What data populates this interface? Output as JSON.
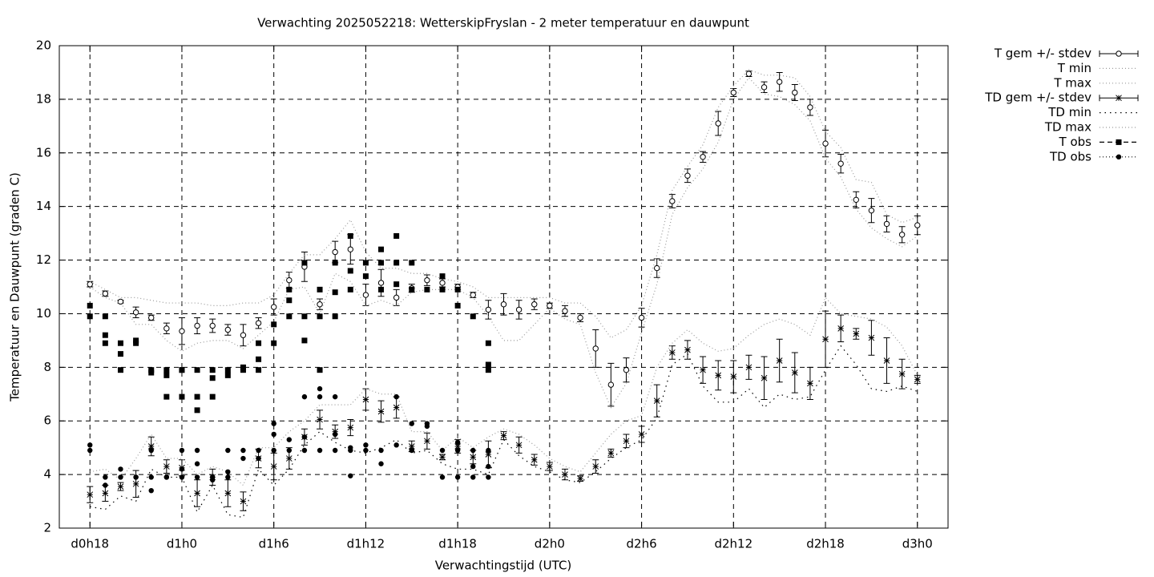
{
  "chart_data": {
    "type": "line",
    "title": "Verwachting 2025052218: WetterskipFryslan - 2 meter temperatuur en dauwpunt",
    "xlabel": "Verwachtingstijd (UTC)",
    "ylabel": "Temperatuur en Dauwpunt (graden C)",
    "xlim": [
      16,
      74
    ],
    "ylim": [
      2,
      20
    ],
    "xticks": [
      {
        "value": 18,
        "label": "d0h18"
      },
      {
        "value": 24,
        "label": "d1h0"
      },
      {
        "value": 30,
        "label": "d1h6"
      },
      {
        "value": 36,
        "label": "d1h12"
      },
      {
        "value": 42,
        "label": "d1h18"
      },
      {
        "value": 48,
        "label": "d2h0"
      },
      {
        "value": 54,
        "label": "d2h6"
      },
      {
        "value": 60,
        "label": "d2h12"
      },
      {
        "value": 66,
        "label": "d2h18"
      },
      {
        "value": 72,
        "label": "d3h0"
      }
    ],
    "yticks": [
      2,
      4,
      6,
      8,
      10,
      12,
      14,
      16,
      18,
      20
    ],
    "grid": true,
    "legend": "outside-top-right",
    "x": [
      18,
      19,
      20,
      21,
      22,
      23,
      24,
      25,
      26,
      27,
      28,
      29,
      30,
      31,
      32,
      33,
      34,
      35,
      36,
      37,
      38,
      39,
      40,
      41,
      42,
      43,
      44,
      45,
      46,
      47,
      48,
      49,
      50,
      51,
      52,
      53,
      54,
      55,
      56,
      57,
      58,
      59,
      60,
      61,
      62,
      63,
      64,
      65,
      66,
      67,
      68,
      69,
      70,
      71,
      72
    ],
    "series": [
      {
        "name": "T gem +/- stdev",
        "color": "#000000",
        "style": "errorbars",
        "marker": "circle-open",
        "values": [
          11.1,
          10.75,
          10.45,
          10.05,
          9.85,
          9.45,
          9.35,
          9.55,
          9.55,
          9.4,
          9.2,
          9.65,
          10.25,
          11.25,
          11.75,
          10.35,
          12.3,
          12.4,
          10.7,
          11.15,
          10.6,
          10.95,
          11.25,
          11.15,
          11.0,
          10.7,
          10.15,
          10.35,
          10.15,
          10.35,
          10.3,
          10.1,
          9.85,
          8.7,
          7.35,
          7.9,
          9.85,
          11.7,
          14.2,
          15.15,
          15.85,
          17.1,
          18.25,
          18.95,
          18.45,
          18.65,
          18.25,
          17.7,
          16.35,
          15.6,
          14.25,
          13.85,
          13.35,
          12.95,
          13.3
        ],
        "errors": [
          0.1,
          0.1,
          0.05,
          0.2,
          0.1,
          0.2,
          0.5,
          0.3,
          0.25,
          0.2,
          0.4,
          0.2,
          0.3,
          0.3,
          0.55,
          0.2,
          0.4,
          0.55,
          0.4,
          0.5,
          0.3,
          0.15,
          0.2,
          0.15,
          0.1,
          0.1,
          0.35,
          0.4,
          0.35,
          0.2,
          0.1,
          0.2,
          0.15,
          0.7,
          0.8,
          0.45,
          0.35,
          0.35,
          0.25,
          0.25,
          0.2,
          0.45,
          0.15,
          0.1,
          0.2,
          0.35,
          0.3,
          0.3,
          0.5,
          0.35,
          0.3,
          0.45,
          0.3,
          0.3,
          0.35
        ]
      },
      {
        "name": "T min",
        "color": "#999999",
        "style": "line",
        "dash": "dotted",
        "values": [
          11.0,
          10.6,
          10.4,
          9.6,
          9.6,
          9.0,
          8.6,
          8.9,
          9.0,
          9.0,
          8.7,
          9.2,
          9.7,
          10.9,
          11.0,
          10.0,
          11.5,
          11.2,
          10.3,
          10.5,
          10.3,
          10.8,
          10.9,
          10.9,
          10.9,
          10.6,
          9.9,
          9.0,
          9.0,
          9.6,
          10.2,
          9.8,
          9.6,
          7.8,
          6.5,
          7.4,
          9.3,
          11.1,
          13.7,
          14.7,
          15.4,
          16.4,
          18.0,
          18.8,
          18.2,
          18.1,
          17.8,
          17.2,
          15.8,
          15.1,
          13.9,
          13.2,
          12.8,
          12.5,
          12.9
        ]
      },
      {
        "name": "T max",
        "color": "#999999",
        "style": "line",
        "dash": "dotted",
        "values": [
          11.2,
          10.9,
          10.6,
          10.6,
          10.5,
          10.4,
          10.4,
          10.4,
          10.3,
          10.3,
          10.4,
          10.4,
          10.7,
          11.5,
          12.2,
          12.2,
          12.8,
          13.5,
          12.3,
          11.7,
          11.7,
          11.5,
          11.5,
          11.3,
          11.2,
          11.0,
          10.6,
          10.6,
          10.6,
          10.6,
          10.6,
          10.4,
          10.4,
          9.9,
          9.1,
          9.4,
          10.3,
          12.2,
          14.6,
          15.5,
          16.3,
          17.7,
          18.5,
          19.1,
          18.9,
          18.9,
          18.8,
          18.1,
          16.8,
          16.2,
          15.0,
          14.9,
          13.7,
          13.4,
          13.6
        ]
      },
      {
        "name": "TD gem +/- stdev",
        "color": "#000000",
        "style": "errorbars",
        "marker": "star",
        "values": [
          3.25,
          3.3,
          3.55,
          3.65,
          5.05,
          4.3,
          4.25,
          3.3,
          3.9,
          3.3,
          3.0,
          4.6,
          4.3,
          4.6,
          5.4,
          6.05,
          5.6,
          5.75,
          6.8,
          6.35,
          6.5,
          5.05,
          5.25,
          4.65,
          5.05,
          4.65,
          4.75,
          5.45,
          5.1,
          4.55,
          4.3,
          4.0,
          3.85,
          4.3,
          4.8,
          5.25,
          5.5,
          6.75,
          8.55,
          8.65,
          7.9,
          7.7,
          7.65,
          8.0,
          7.6,
          8.25,
          7.8,
          7.4,
          9.05,
          9.45,
          9.25,
          9.1,
          8.25,
          7.75,
          7.55
        ],
        "errors": [
          0.3,
          0.3,
          0.15,
          0.5,
          0.35,
          0.25,
          0.3,
          0.5,
          0.3,
          0.5,
          0.35,
          0.35,
          0.5,
          0.4,
          0.3,
          0.35,
          0.25,
          0.3,
          0.4,
          0.4,
          0.4,
          0.2,
          0.3,
          0.1,
          0.25,
          0.25,
          0.5,
          0.15,
          0.3,
          0.2,
          0.15,
          0.2,
          0.1,
          0.25,
          0.15,
          0.25,
          0.3,
          0.6,
          0.25,
          0.35,
          0.5,
          0.55,
          0.6,
          0.45,
          0.8,
          0.8,
          0.75,
          0.6,
          1.05,
          0.5,
          0.2,
          0.65,
          0.85,
          0.55,
          0.15
        ]
      },
      {
        "name": "TD min",
        "color": "#000000",
        "style": "line",
        "dash": "sparse",
        "values": [
          2.8,
          2.7,
          3.2,
          3.0,
          4.2,
          3.9,
          3.9,
          2.6,
          3.6,
          2.5,
          2.4,
          4.2,
          3.6,
          4.2,
          5.1,
          5.6,
          5.2,
          4.9,
          4.8,
          5.0,
          5.3,
          4.8,
          4.9,
          4.4,
          4.2,
          4.2,
          4.0,
          5.3,
          4.7,
          4.3,
          4.1,
          3.8,
          3.7,
          4.1,
          4.6,
          5.0,
          5.3,
          6.1,
          8.1,
          8.5,
          7.3,
          6.7,
          6.7,
          7.2,
          6.5,
          7.0,
          6.8,
          6.9,
          7.9,
          8.8,
          8.1,
          7.2,
          7.1,
          7.3,
          7.1
        ]
      },
      {
        "name": "TD max",
        "color": "#999999",
        "style": "line",
        "dash": "dotted",
        "values": [
          4.1,
          4.2,
          3.8,
          4.6,
          5.5,
          4.6,
          4.6,
          4.0,
          4.3,
          4.1,
          3.6,
          5.0,
          5.0,
          5.6,
          6.0,
          6.6,
          6.6,
          6.6,
          7.2,
          7.0,
          7.0,
          5.6,
          5.6,
          4.9,
          5.4,
          5.0,
          5.4,
          5.7,
          5.5,
          5.1,
          4.6,
          4.3,
          4.1,
          4.8,
          5.5,
          6.0,
          6.2,
          8.0,
          8.9,
          9.4,
          8.9,
          8.6,
          8.7,
          9.2,
          9.6,
          9.8,
          9.6,
          9.2,
          10.6,
          10.0,
          9.9,
          9.8,
          9.5,
          8.8,
          7.7
        ]
      },
      {
        "name": "T obs",
        "color": "#000000",
        "style": "points",
        "marker": "square",
        "dash": "dashed",
        "x": [
          18,
          18,
          19,
          19,
          19,
          20,
          20,
          20,
          21,
          21,
          22,
          22,
          23,
          23,
          23,
          24,
          24,
          24,
          25,
          25,
          25,
          26,
          26,
          26,
          27,
          27,
          28,
          28,
          29,
          29,
          29,
          30,
          30,
          31,
          31,
          31,
          32,
          32,
          32,
          33,
          33,
          33,
          34,
          34,
          34,
          35,
          35,
          35,
          36,
          36,
          37,
          37,
          37,
          38,
          38,
          38,
          39,
          39,
          40,
          41,
          41,
          42,
          42,
          43,
          44,
          44,
          44
        ],
        "values": [
          10.3,
          9.9,
          9.9,
          9.2,
          8.9,
          8.9,
          8.5,
          7.9,
          9.0,
          8.9,
          7.9,
          7.8,
          7.9,
          7.7,
          6.9,
          7.9,
          7.9,
          6.9,
          7.9,
          6.9,
          6.4,
          7.9,
          7.6,
          6.9,
          7.9,
          7.7,
          7.9,
          8.0,
          8.9,
          8.3,
          7.9,
          9.6,
          8.9,
          10.9,
          10.5,
          9.9,
          11.9,
          9.9,
          9.0,
          10.9,
          9.9,
          7.9,
          11.9,
          10.8,
          9.9,
          12.9,
          11.6,
          10.9,
          11.9,
          11.4,
          12.4,
          11.9,
          10.9,
          12.9,
          11.9,
          11.1,
          11.9,
          10.9,
          10.9,
          11.4,
          10.9,
          10.9,
          10.3,
          9.9,
          8.9,
          8.1,
          7.9
        ]
      },
      {
        "name": "TD obs",
        "color": "#000000",
        "style": "points",
        "marker": "circle",
        "dash": "dotted",
        "x": [
          18,
          18,
          19,
          19,
          20,
          20,
          21,
          21,
          22,
          22,
          22,
          23,
          23,
          24,
          24,
          24,
          25,
          25,
          25,
          26,
          26,
          27,
          27,
          27,
          28,
          28,
          29,
          29,
          30,
          30,
          30,
          31,
          31,
          32,
          32,
          32,
          33,
          33,
          33,
          34,
          34,
          34,
          35,
          35,
          35,
          36,
          36,
          37,
          37,
          38,
          38,
          39,
          39,
          40,
          40,
          41,
          41,
          42,
          42,
          42,
          43,
          43,
          43,
          44,
          44,
          44
        ],
        "values": [
          5.1,
          4.9,
          3.9,
          3.6,
          4.2,
          3.9,
          3.9,
          3.9,
          4.9,
          3.9,
          3.4,
          3.9,
          3.9,
          4.9,
          4.2,
          3.9,
          4.9,
          4.4,
          3.9,
          3.9,
          3.8,
          4.9,
          4.1,
          3.9,
          4.9,
          4.6,
          4.9,
          4.6,
          5.9,
          5.5,
          4.9,
          5.3,
          4.9,
          6.9,
          5.4,
          4.9,
          7.2,
          6.9,
          4.9,
          6.9,
          5.5,
          4.9,
          5.0,
          4.9,
          3.95,
          5.1,
          4.9,
          4.9,
          4.4,
          6.9,
          5.1,
          5.9,
          4.9,
          5.9,
          5.8,
          4.9,
          3.9,
          5.2,
          4.9,
          3.9,
          4.9,
          4.3,
          3.9,
          4.9,
          4.3,
          3.9
        ]
      }
    ]
  }
}
